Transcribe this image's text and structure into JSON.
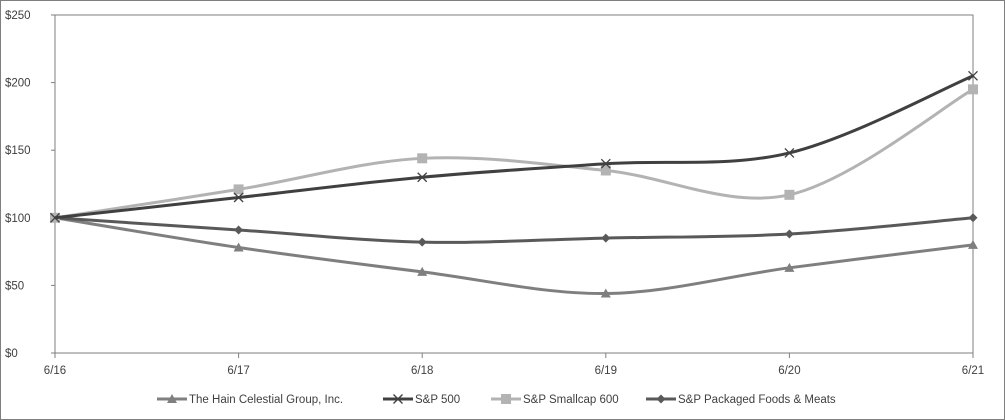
{
  "chart_data": {
    "type": "line",
    "categories": [
      "6/16",
      "6/17",
      "6/18",
      "6/19",
      "6/20",
      "6/21"
    ],
    "y_tick_labels": [
      "$0",
      "$50",
      "$100",
      "$150",
      "$200",
      "$250"
    ],
    "y_ticks": [
      0,
      50,
      100,
      150,
      200,
      250
    ],
    "ylim": [
      0,
      250
    ],
    "grid": false,
    "legend_position": "bottom",
    "series": [
      {
        "name": "The Hain Celestial Group, Inc.",
        "values": [
          100,
          78,
          60,
          44,
          63,
          80
        ],
        "color": "#7f7f7f",
        "marker": "triangle"
      },
      {
        "name": "S&P 500",
        "values": [
          100,
          115,
          130,
          140,
          148,
          205
        ],
        "color": "#404040",
        "marker": "x"
      },
      {
        "name": "S&P Smallcap 600",
        "values": [
          100,
          121,
          144,
          135,
          117,
          195
        ],
        "color": "#b3b3b3",
        "marker": "square"
      },
      {
        "name": "S&P Packaged Foods & Meats",
        "values": [
          100,
          91,
          82,
          85,
          88,
          100
        ],
        "color": "#595959",
        "marker": "diamond"
      }
    ]
  }
}
